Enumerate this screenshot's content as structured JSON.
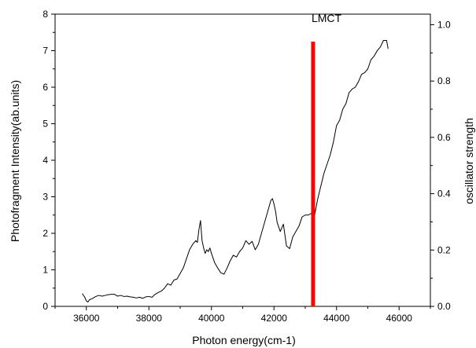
{
  "chart_data": {
    "type": "line",
    "title": "",
    "xlabel": "Photon energy(cm-1)",
    "ylabel": "Photofragment Intensity(ab.units)",
    "y2label": "oscillator strength",
    "xlim": [
      35000,
      47000
    ],
    "ylim": [
      0,
      8
    ],
    "y2lim": [
      0,
      1.0375
    ],
    "x_ticks": [
      36000,
      38000,
      40000,
      42000,
      44000,
      46000
    ],
    "x_tick_labels": [
      "36000",
      "38000",
      "40000",
      "42000",
      "44000",
      "46000"
    ],
    "y_ticks": [
      0,
      1,
      2,
      3,
      4,
      5,
      6,
      7,
      8
    ],
    "y_tick_labels": [
      "0",
      "1",
      "2",
      "3",
      "4",
      "5",
      "6",
      "7",
      "8"
    ],
    "y2_ticks": [
      0.0,
      0.2,
      0.4,
      0.6,
      0.8,
      1.0
    ],
    "y2_tick_labels": [
      "0.0",
      "0.2",
      "0.4",
      "0.6",
      "0.8",
      "1.0"
    ],
    "grid": false,
    "legend": "none",
    "series": [
      {
        "line_color": "#000000",
        "x": [
          35870,
          35950,
          36000,
          36050,
          36100,
          36200,
          36300,
          36400,
          36500,
          36600,
          36700,
          36800,
          36900,
          37000,
          37100,
          37200,
          37300,
          37400,
          37500,
          37600,
          37700,
          37800,
          37900,
          38000,
          38100,
          38200,
          38300,
          38400,
          38500,
          38600,
          38700,
          38800,
          38900,
          39000,
          39100,
          39200,
          39300,
          39400,
          39500,
          39550,
          39600,
          39650,
          39700,
          39750,
          39800,
          39850,
          39900,
          39950,
          40000,
          40100,
          40200,
          40300,
          40400,
          40500,
          40600,
          40700,
          40800,
          40900,
          41000,
          41100,
          41200,
          41300,
          41400,
          41500,
          41600,
          41700,
          41800,
          41900,
          41950,
          42000,
          42050,
          42100,
          42200,
          42300,
          42400,
          42500,
          42600,
          42700,
          42800,
          42900,
          43000,
          43100,
          43200,
          43300,
          43400,
          43500,
          43600,
          43700,
          43800,
          43900,
          44000,
          44100,
          44200,
          44300,
          44400,
          44500,
          44600,
          44700,
          44800,
          44900,
          45000,
          45100,
          45200,
          45300,
          45400,
          45500,
          45600,
          45650
        ],
        "y": [
          0.35,
          0.25,
          0.15,
          0.12,
          0.18,
          0.22,
          0.27,
          0.3,
          0.28,
          0.3,
          0.32,
          0.33,
          0.33,
          0.28,
          0.3,
          0.27,
          0.28,
          0.26,
          0.25,
          0.23,
          0.25,
          0.22,
          0.26,
          0.27,
          0.25,
          0.33,
          0.38,
          0.42,
          0.5,
          0.62,
          0.58,
          0.72,
          0.75,
          0.9,
          1.05,
          1.3,
          1.55,
          1.7,
          1.8,
          1.75,
          2.1,
          2.35,
          1.8,
          1.6,
          1.45,
          1.55,
          1.5,
          1.6,
          1.45,
          1.2,
          1.05,
          0.92,
          0.88,
          1.05,
          1.25,
          1.4,
          1.35,
          1.5,
          1.6,
          1.8,
          1.7,
          1.78,
          1.55,
          1.7,
          2.0,
          2.3,
          2.6,
          2.9,
          2.95,
          2.8,
          2.6,
          2.3,
          2.05,
          2.25,
          1.65,
          1.58,
          1.9,
          2.05,
          2.2,
          2.45,
          2.5,
          2.5,
          2.55,
          2.5,
          2.95,
          3.3,
          3.65,
          3.9,
          4.15,
          4.5,
          4.95,
          5.1,
          5.4,
          5.55,
          5.85,
          5.95,
          6.0,
          6.15,
          6.35,
          6.4,
          6.5,
          6.75,
          6.85,
          7.0,
          7.1,
          7.28,
          7.28,
          7.05
        ]
      }
    ],
    "bars": [
      {
        "label": "LMCT",
        "x": 43250,
        "value": 0.94,
        "axis": "right",
        "color": "#ff0000"
      }
    ],
    "annotations": [
      {
        "text": "LMCT"
      }
    ],
    "colors": {
      "line": "#000000",
      "bar": "#ff0000",
      "axis": "#000000",
      "background": "#ffffff"
    }
  }
}
